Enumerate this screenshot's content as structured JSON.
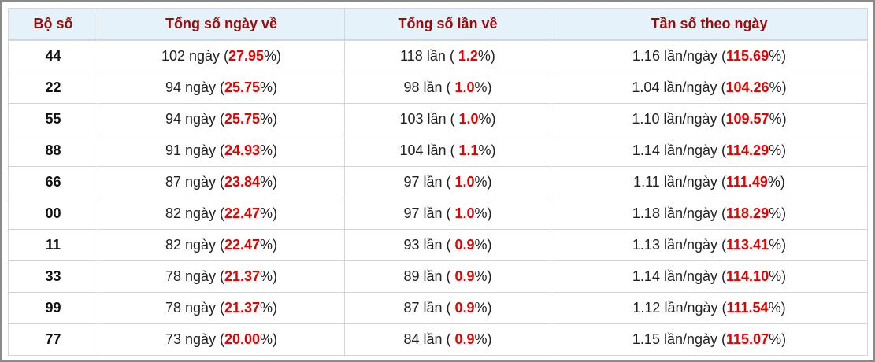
{
  "table": {
    "header": [
      "Bộ số",
      "Tổng số ngày về",
      "Tổng số lần về",
      "Tần số theo ngày"
    ],
    "rows": [
      {
        "number": "44",
        "days": [
          "102 ngày (",
          "27.95",
          "%)"
        ],
        "times": [
          "118 lần ( ",
          "1.2",
          "%)"
        ],
        "freq": [
          "1.16 lần/ngày (",
          "115.69",
          "%)"
        ]
      },
      {
        "number": "22",
        "days": [
          "94 ngày (",
          "25.75",
          "%)"
        ],
        "times": [
          "98 lần ( ",
          "1.0",
          "%)"
        ],
        "freq": [
          "1.04 lần/ngày (",
          "104.26",
          "%)"
        ]
      },
      {
        "number": "55",
        "days": [
          "94 ngày (",
          "25.75",
          "%)"
        ],
        "times": [
          "103 lần ( ",
          "1.0",
          "%)"
        ],
        "freq": [
          "1.10 lần/ngày (",
          "109.57",
          "%)"
        ]
      },
      {
        "number": "88",
        "days": [
          "91 ngày (",
          "24.93",
          "%)"
        ],
        "times": [
          "104 lần ( ",
          "1.1",
          "%)"
        ],
        "freq": [
          "1.14 lần/ngày (",
          "114.29",
          "%)"
        ]
      },
      {
        "number": "66",
        "days": [
          "87 ngày (",
          "23.84",
          "%)"
        ],
        "times": [
          "97 lần ( ",
          "1.0",
          "%)"
        ],
        "freq": [
          "1.11 lần/ngày (",
          "111.49",
          "%)"
        ]
      },
      {
        "number": "00",
        "days": [
          "82 ngày (",
          "22.47",
          "%)"
        ],
        "times": [
          "97 lần ( ",
          "1.0",
          "%)"
        ],
        "freq": [
          "1.18 lần/ngày (",
          "118.29",
          "%)"
        ]
      },
      {
        "number": "11",
        "days": [
          "82 ngày (",
          "22.47",
          "%)"
        ],
        "times": [
          "93 lần ( ",
          "0.9",
          "%)"
        ],
        "freq": [
          "1.13 lần/ngày (",
          "113.41",
          "%)"
        ]
      },
      {
        "number": "33",
        "days": [
          "78 ngày (",
          "21.37",
          "%)"
        ],
        "times": [
          "89 lần ( ",
          "0.9",
          "%)"
        ],
        "freq": [
          "1.14 lần/ngày (",
          "114.10",
          "%)"
        ]
      },
      {
        "number": "99",
        "days": [
          "78 ngày (",
          "21.37",
          "%)"
        ],
        "times": [
          "87 lần ( ",
          "0.9",
          "%)"
        ],
        "freq": [
          "1.12 lần/ngày (",
          "111.54",
          "%)"
        ]
      },
      {
        "number": "77",
        "days": [
          "73 ngày (",
          "20.00",
          "%)"
        ],
        "times": [
          "84 lần ( ",
          "0.9",
          "%)"
        ],
        "freq": [
          "1.15 lần/ngày (",
          "115.07",
          "%)"
        ]
      }
    ]
  }
}
